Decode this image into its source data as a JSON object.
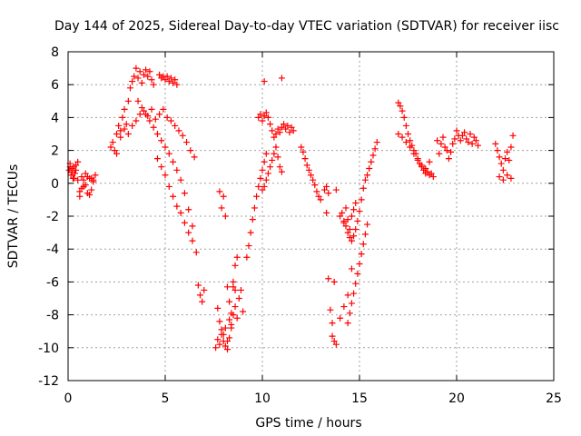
{
  "chart_data": {
    "type": "scatter",
    "title": "Day 144 of 2025, Sidereal Day-to-day VTEC variation (SDTVAR) for receiver iisc",
    "xlabel": "GPS time / hours",
    "ylabel": "SDTVAR / TECUs",
    "xlim": [
      0,
      25
    ],
    "ylim": [
      -12,
      8
    ],
    "xticks": [
      "0",
      "5",
      "10",
      "15",
      "20",
      "25"
    ],
    "yticks": [
      "-12",
      "-10",
      "-8",
      "-6",
      "-4",
      "-2",
      "0",
      "2",
      "4",
      "6",
      "8"
    ],
    "grid": true,
    "marker": "+",
    "color": "#ff0000",
    "series": [
      {
        "x": [
          0.05,
          0.1,
          0.15,
          0.2,
          0.25,
          0.3,
          0.35,
          0.4,
          0.5,
          0.6,
          0.7,
          0.8,
          0.9,
          1.0,
          1.1,
          1.2,
          1.3,
          1.4,
          0.1,
          0.2,
          0.3,
          0.4,
          0.5,
          0.6,
          0.7,
          0.8,
          0.9,
          1.0,
          1.1,
          1.2,
          1.3,
          2.2,
          2.3,
          2.4,
          2.5,
          2.6,
          2.7,
          2.8,
          2.9,
          3.0,
          3.1,
          3.2,
          3.3,
          3.4,
          3.5,
          3.6,
          3.7,
          3.8,
          3.9,
          4.0,
          4.1,
          4.2,
          4.3,
          4.4,
          2.5,
          2.7,
          2.9,
          3.1,
          3.3,
          3.5,
          3.7,
          3.9,
          4.1,
          4.3,
          4.5,
          4.7,
          4.9,
          5.1,
          5.3,
          5.5,
          5.7,
          5.9,
          6.1,
          6.3,
          6.5,
          3.6,
          3.8,
          4.0,
          4.2,
          4.4,
          4.6,
          4.8,
          5.0,
          5.2,
          5.4,
          5.6,
          5.8,
          6.0,
          6.2,
          6.4,
          4.6,
          4.8,
          5.0,
          5.2,
          5.4,
          5.6,
          5.8,
          6.0,
          6.2,
          6.4,
          4.7,
          4.8,
          4.9,
          5.0,
          5.1,
          5.2,
          5.3,
          5.4,
          5.5,
          5.6,
          6.6,
          6.7,
          6.8,
          6.9,
          7.0,
          7.6,
          7.7,
          7.8,
          7.9,
          8.0,
          8.1,
          8.2,
          8.3,
          8.4,
          8.5,
          8.6,
          8.7,
          8.8,
          8.9,
          9.0,
          7.7,
          7.8,
          7.9,
          8.0,
          8.1,
          8.2,
          8.3,
          8.4,
          8.5,
          8.6,
          8.7,
          7.8,
          7.9,
          8.0,
          8.1,
          8.2,
          8.3,
          8.4,
          8.5,
          8.6,
          9.2,
          9.3,
          9.4,
          9.5,
          9.6,
          9.7,
          9.8,
          9.9,
          10.0,
          10.1,
          10.2,
          9.8,
          9.9,
          10.0,
          10.1,
          10.2,
          10.3,
          10.4,
          10.5,
          10.6,
          10.7,
          10.8,
          10.9,
          11.0,
          11.1,
          11.2,
          11.3,
          11.4,
          11.5,
          11.6,
          10.0,
          10.1,
          10.2,
          10.3,
          10.4,
          10.5,
          10.6,
          10.7,
          10.8,
          10.9,
          11.0,
          10.1,
          11.0,
          12.0,
          12.1,
          12.2,
          12.3,
          12.4,
          12.5,
          12.6,
          12.7,
          12.8,
          12.9,
          13.0,
          13.2,
          13.3,
          13.4,
          13.5,
          13.6,
          13.7,
          13.6,
          13.7,
          13.8,
          14.0,
          14.2,
          14.4,
          14.6,
          14.1,
          14.2,
          14.3,
          14.4,
          14.5,
          14.6,
          14.7,
          14.8,
          14.9,
          15.0,
          15.1,
          15.2,
          15.3,
          15.4,
          15.5,
          15.6,
          15.7,
          15.8,
          15.9,
          13.3,
          13.4,
          13.8,
          14.0,
          14.2,
          14.3,
          14.4,
          14.5,
          14.6,
          14.7,
          14.8,
          14.4,
          14.5,
          14.6,
          14.7,
          14.8,
          14.9,
          15.0,
          15.1,
          15.2,
          15.3,
          15.4,
          17.0,
          17.1,
          17.2,
          17.3,
          17.4,
          17.5,
          17.6,
          17.7,
          17.8,
          17.9,
          18.0,
          18.1,
          18.2,
          18.3,
          18.4,
          18.5,
          18.6,
          18.7,
          18.8,
          17.0,
          17.2,
          17.4,
          17.6,
          17.8,
          18.0,
          18.2,
          18.4,
          18.6,
          19.0,
          19.1,
          19.2,
          19.3,
          19.4,
          19.5,
          19.6,
          19.7,
          19.8,
          19.9,
          20.0,
          20.1,
          20.2,
          20.3,
          20.4,
          20.5,
          20.6,
          20.7,
          20.8,
          20.9,
          21.0,
          21.1,
          22.0,
          22.1,
          22.2,
          22.3,
          22.4,
          22.5,
          22.6,
          22.7,
          22.8,
          22.9,
          22.2,
          22.4,
          22.6,
          22.8
        ],
        "y": [
          0.8,
          1.2,
          0.5,
          0.9,
          0.3,
          1.0,
          0.6,
          1.1,
          0.2,
          -0.5,
          0.4,
          -0.2,
          0.6,
          -0.6,
          0.3,
          -0.4,
          0.1,
          0.5,
          1.0,
          0.7,
          0.3,
          0.8,
          1.3,
          -0.8,
          -0.3,
          0.2,
          -0.1,
          0.4,
          -0.7,
          0.3,
          0.2,
          2.2,
          2.5,
          2.0,
          3.0,
          3.5,
          3.2,
          4.0,
          4.5,
          3.6,
          5.0,
          5.8,
          6.2,
          6.5,
          7.0,
          6.4,
          6.8,
          6.1,
          6.6,
          6.9,
          6.5,
          6.8,
          6.3,
          6.0,
          1.8,
          2.8,
          3.3,
          3.0,
          3.5,
          3.8,
          4.2,
          4.4,
          4.1,
          4.5,
          3.9,
          4.2,
          4.5,
          4.0,
          3.8,
          3.5,
          3.2,
          2.9,
          2.5,
          2.0,
          1.6,
          5.0,
          4.6,
          4.2,
          3.8,
          3.4,
          3.0,
          2.6,
          2.2,
          1.8,
          1.3,
          0.8,
          0.2,
          -0.6,
          -1.6,
          -2.6,
          1.5,
          1.0,
          0.5,
          -0.2,
          -0.8,
          -1.4,
          -1.8,
          -2.4,
          -3.0,
          -3.5,
          6.6,
          6.4,
          6.5,
          6.3,
          6.5,
          6.2,
          6.4,
          6.1,
          6.3,
          6.0,
          -4.2,
          -6.2,
          -6.8,
          -7.2,
          -6.5,
          -10.0,
          -9.5,
          -9.8,
          -9.2,
          -9.6,
          -9.9,
          -10.1,
          -9.4,
          -8.6,
          -8.0,
          -7.5,
          -8.2,
          -7.0,
          -6.5,
          -7.8,
          -7.6,
          -8.4,
          -8.9,
          -9.2,
          -8.8,
          -9.6,
          -8.3,
          -7.9,
          -6.3,
          -5.0,
          -4.5,
          -0.5,
          -1.5,
          -0.8,
          -2.0,
          -6.3,
          -7.2,
          -8.8,
          -6.0,
          -6.5,
          -4.5,
          -3.8,
          -3.0,
          -2.2,
          -1.5,
          -0.8,
          -0.2,
          0.3,
          0.8,
          1.3,
          1.8,
          4.0,
          4.2,
          3.8,
          4.1,
          4.3,
          4.0,
          3.6,
          3.2,
          2.8,
          3.0,
          3.3,
          3.1,
          3.4,
          3.6,
          3.3,
          3.5,
          3.1,
          3.4,
          3.2,
          -0.4,
          -0.2,
          0.2,
          0.6,
          1.0,
          1.4,
          1.8,
          2.2,
          1.6,
          1.0,
          0.7,
          6.2,
          6.4,
          2.2,
          1.9,
          1.5,
          1.1,
          0.8,
          0.5,
          0.2,
          -0.1,
          -0.5,
          -0.8,
          -1.0,
          -0.4,
          -1.8,
          -5.8,
          -7.7,
          -8.5,
          -6.0,
          -9.3,
          -9.6,
          -9.8,
          -8.2,
          -7.5,
          -6.8,
          -5.2,
          -1.8,
          -2.3,
          -2.6,
          -3.0,
          -3.3,
          -3.5,
          -3.2,
          -2.8,
          -2.3,
          -1.7,
          -1.0,
          -0.3,
          0.2,
          0.5,
          0.9,
          1.3,
          1.7,
          2.1,
          2.5,
          -0.2,
          -0.6,
          -0.4,
          -2.0,
          -2.4,
          -1.5,
          -2.2,
          -2.8,
          -2.0,
          -1.6,
          -1.2,
          -8.5,
          -7.9,
          -7.3,
          -6.7,
          -6.1,
          -5.5,
          -4.9,
          -4.3,
          -3.7,
          -3.1,
          -2.5,
          4.9,
          4.7,
          4.4,
          4.0,
          3.5,
          3.0,
          2.6,
          2.3,
          2.0,
          1.8,
          1.5,
          1.2,
          1.0,
          0.8,
          0.6,
          0.7,
          0.5,
          0.6,
          0.4,
          3.0,
          2.8,
          2.5,
          2.2,
          1.8,
          1.4,
          1.1,
          0.9,
          1.3,
          2.6,
          1.8,
          2.4,
          2.8,
          2.2,
          2.0,
          1.5,
          1.9,
          2.4,
          2.7,
          3.2,
          2.9,
          2.6,
          2.9,
          3.1,
          2.7,
          2.5,
          3.0,
          2.4,
          2.8,
          2.6,
          2.3,
          2.4,
          2.0,
          1.6,
          1.2,
          0.8,
          1.5,
          1.9,
          1.4,
          2.2,
          2.9,
          0.4,
          0.2,
          0.5,
          0.3
        ]
      }
    ]
  }
}
